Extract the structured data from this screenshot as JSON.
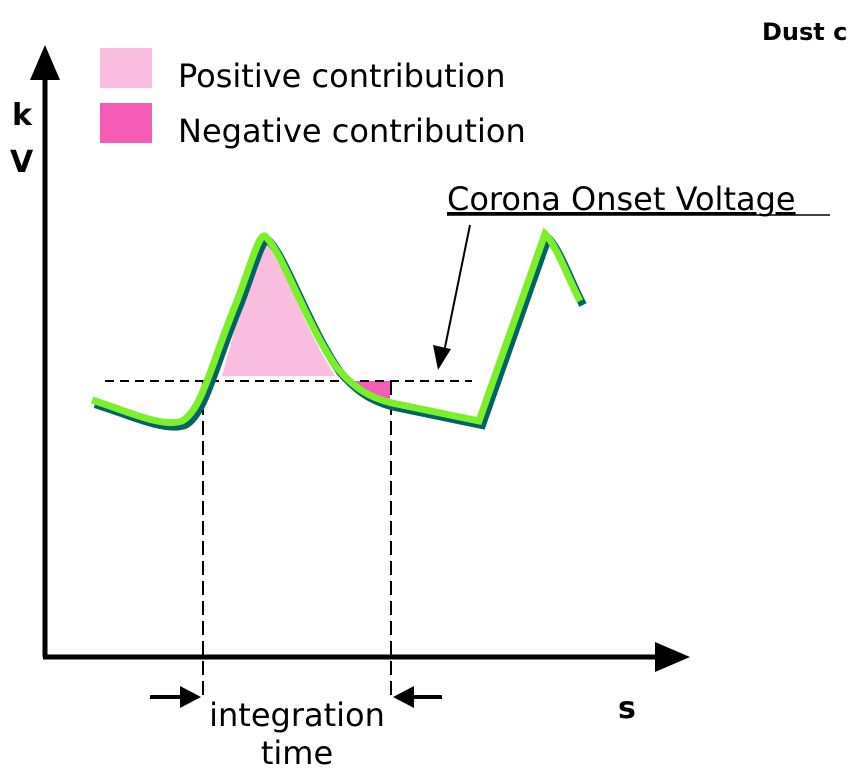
{
  "header": {
    "title": "Dust c"
  },
  "legend": {
    "positive": "Positive contribution",
    "negative": "Negative contribution"
  },
  "axes": {
    "y_label_1": "k",
    "y_label_2": "V",
    "x_label": "s"
  },
  "annotations": {
    "corona": "Corona Onset Voltage",
    "integration_1": "integration",
    "integration_2": "time"
  }
}
